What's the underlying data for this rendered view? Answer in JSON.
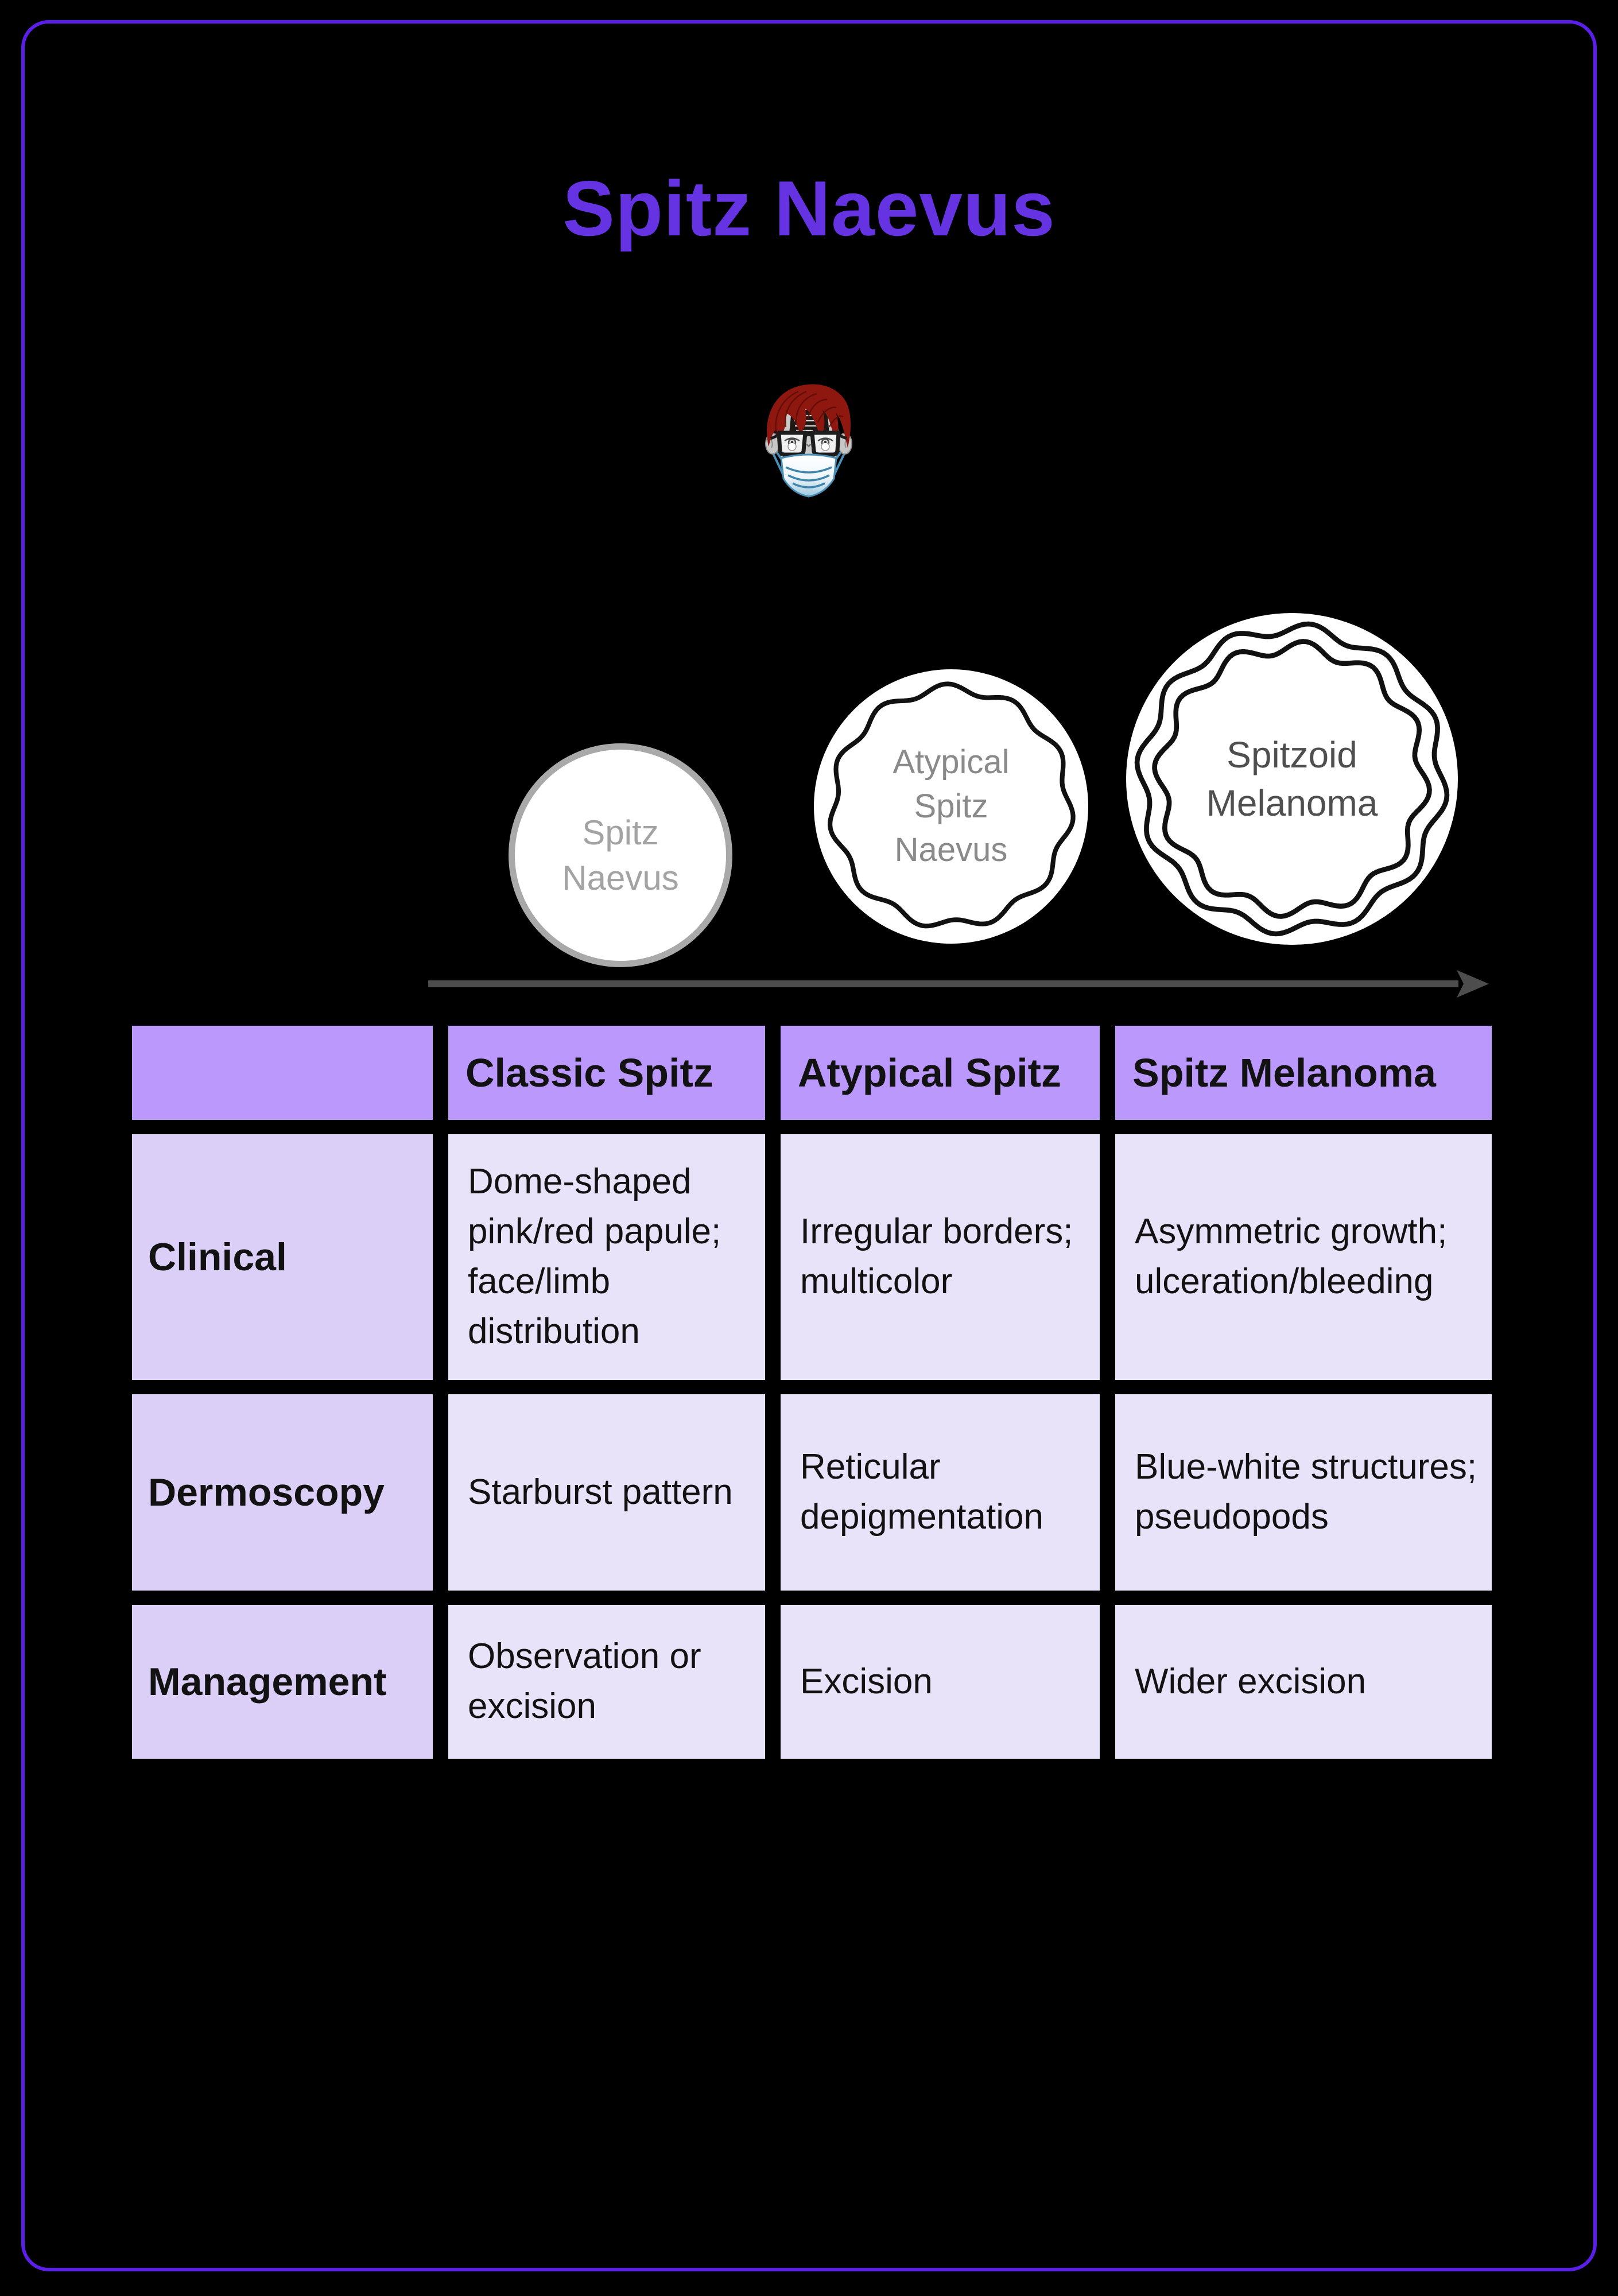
{
  "page": {
    "title": "Spitz Naevus"
  },
  "colors": {
    "frame_border": "#5b1fe9",
    "title": "#6633e3",
    "table_header_bg": "#bb99fc",
    "row_label_bg": "#dccff7",
    "cell_bg": "#e9e3fa",
    "arrow": "#4d4d4d",
    "stage1_ring": "#a9a9a9",
    "wavy_ring": "#111111",
    "avatar_hair": "#8e170f",
    "avatar_mask_blue": "#9cc8e0"
  },
  "progression": {
    "stages": [
      {
        "lines": [
          "Spitz",
          "Naevus"
        ]
      },
      {
        "lines": [
          "Atypical",
          "Spitz",
          "Naevus"
        ]
      },
      {
        "lines": [
          "Spitzoid",
          "Melanoma"
        ]
      }
    ]
  },
  "table": {
    "column_headers": [
      "Classic Spitz",
      "Atypical Spitz",
      "Spitz Melanoma"
    ],
    "rows": [
      {
        "label": "Clinical",
        "cells": [
          "Dome-shaped pink/red papule; face/limb distribution",
          "Irregular borders; multicolor",
          "Asymmetric growth; ulceration/bleeding"
        ]
      },
      {
        "label": "Dermoscopy",
        "cells": [
          "Starburst pattern",
          "Reticular depigmentation",
          "Blue-white structures; pseudopods"
        ]
      },
      {
        "label": "Management",
        "cells": [
          "Observation or excision",
          "Excision",
          "Wider excision"
        ]
      }
    ]
  }
}
